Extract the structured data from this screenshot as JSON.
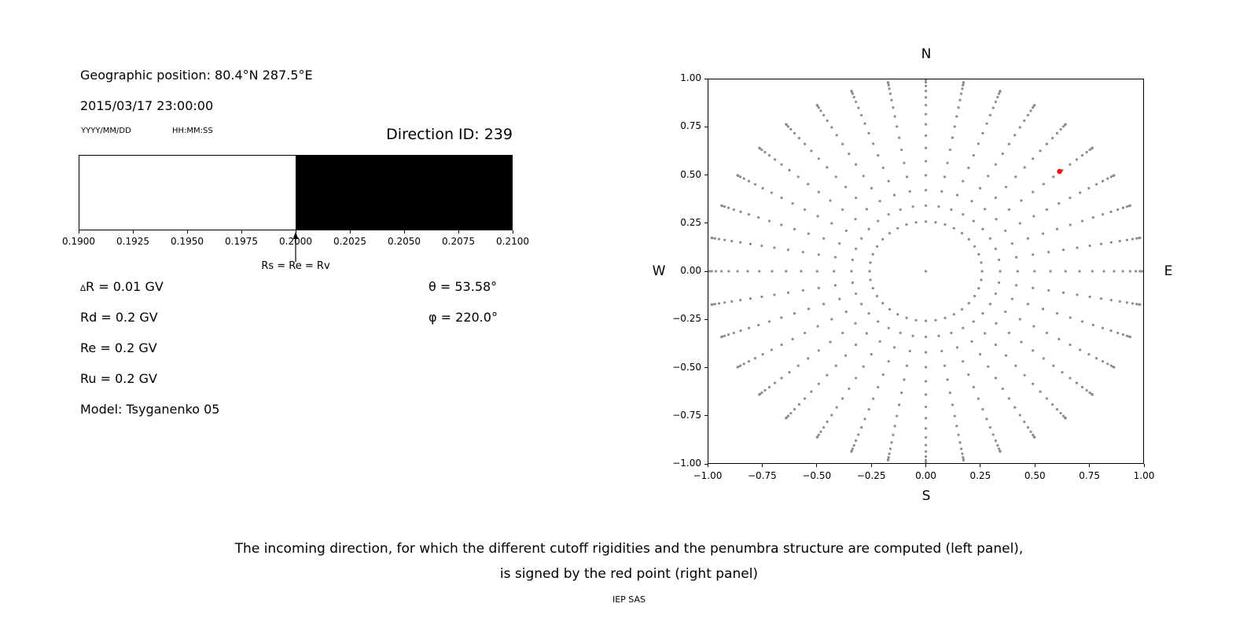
{
  "header": {
    "geo_position": "Geographic position: 80.4°N 287.5°E",
    "datetime": "2015/03/17 23:00:00",
    "date_format_label": "YYYY/MM/DD",
    "time_format_label": "HH:MM:SS",
    "direction_id": "Direction ID: 239"
  },
  "parameters": {
    "delta_r_symbol": "∆",
    "delta_r_text": "R = 0.01 GV",
    "rd": "Rd = 0.2 GV",
    "re": "Re = 0.2 GV",
    "ru": "Ru = 0.2 GV",
    "model": "Model: Tsyganenko 05",
    "theta": "θ = 53.58°",
    "phi": "φ = 220.0°"
  },
  "chart_data": [
    {
      "name": "penumbra-structure",
      "type": "bar",
      "xlim": [
        0.19,
        0.21
      ],
      "x_ticks": [
        "0.1900",
        "0.1925",
        "0.1950",
        "0.1975",
        "0.2000",
        "0.2025",
        "0.2050",
        "0.2075",
        "0.2100"
      ],
      "segments": [
        {
          "from": 0.19,
          "to": 0.2,
          "color": "#ffffff"
        },
        {
          "from": 0.2,
          "to": 0.21,
          "color": "#000000"
        }
      ],
      "arrow": {
        "x": 0.2,
        "label": "Rs = Re = Rv"
      }
    },
    {
      "name": "incoming-directions",
      "type": "scatter",
      "xlim": [
        -1,
        1
      ],
      "ylim": [
        -1,
        1
      ],
      "x_ticks": [
        "−1.00",
        "−0.75",
        "−0.50",
        "−0.25",
        "0.00",
        "0.25",
        "0.50",
        "0.75",
        "1.00"
      ],
      "y_ticks": [
        "1.00",
        "0.75",
        "0.50",
        "0.25",
        "0.00",
        "−0.25",
        "−0.50",
        "−0.75",
        "−1.00"
      ],
      "compass": {
        "top": "N",
        "bottom": "S",
        "left": "W",
        "right": "E"
      },
      "grid_points": {
        "description": "Radial grid of candidate incoming directions: azimuths every 10 deg, zenith angles 15-90 deg in 5 deg steps, plotted at radius sin(zenith); one point at center.",
        "azimuth_deg": {
          "start": 0,
          "step": 10,
          "count": 36
        },
        "zenith_deg": {
          "start": 15,
          "step": 5,
          "end": 90
        },
        "radius": "sin(zenith)",
        "center_point": true,
        "color": "#8c8c8c",
        "marker_radius_px": 1.6
      },
      "red_point": {
        "x": 0.615,
        "y": 0.52,
        "color": "#ff0000",
        "marker_radius_px": 3.2
      }
    }
  ],
  "caption": {
    "line1": "The incoming direction, for which the different cutoff rigidities and the penumbra structure are computed (left panel),",
    "line2": "is signed by the red point (right panel)",
    "credit": "IEP SAS"
  }
}
